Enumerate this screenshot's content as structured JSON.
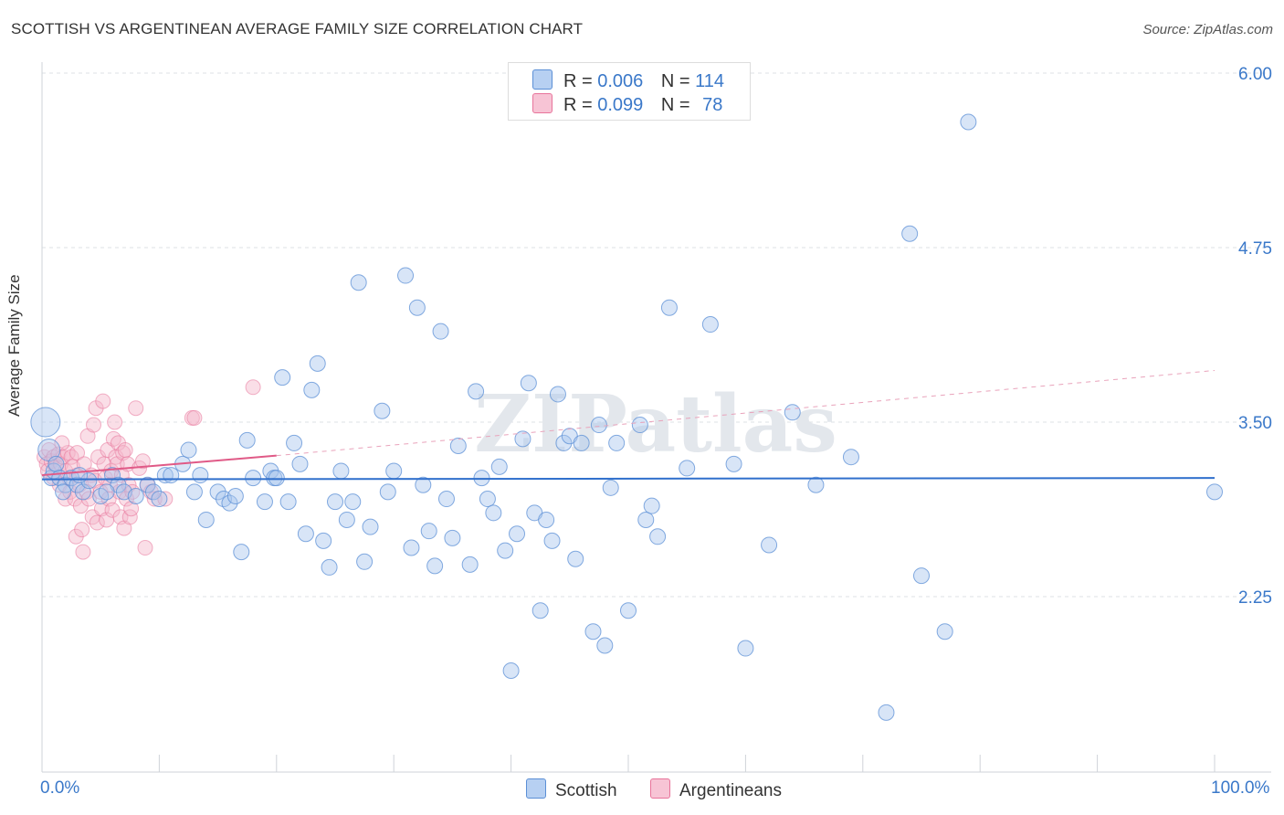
{
  "title": "SCOTTISH VS ARGENTINEAN AVERAGE FAMILY SIZE CORRELATION CHART",
  "source": "Source: ZipAtlas.com",
  "colors": {
    "blue": "#5b8fd6",
    "blue_fill": "#a9c6ee",
    "pink": "#e8749b",
    "pink_fill": "#f4b6ca",
    "tick_text": "#3a78c9"
  },
  "watermark": "ZIPatlas",
  "legend": {
    "rows": [
      {
        "r_label": "R =",
        "r_value": "0.006",
        "n_label": "N =",
        "n_value": "114"
      },
      {
        "r_label": "R =",
        "r_value": "0.099",
        "n_label": "N =",
        "n_value": "78"
      }
    ]
  },
  "chart_data": {
    "type": "scatter",
    "title": "SCOTTISH VS ARGENTINEAN AVERAGE FAMILY SIZE CORRELATION CHART",
    "xlabel": "",
    "ylabel": "Average Family Size",
    "xlim": [
      0,
      100
    ],
    "ylim": [
      1.2,
      6.1
    ],
    "x_tick_labels": [
      "0.0%",
      "100.0%"
    ],
    "y_ticks": [
      2.25,
      3.5,
      4.75,
      6.0
    ],
    "y_tick_labels": [
      "2.25",
      "3.50",
      "4.75",
      "6.00"
    ],
    "grid": true,
    "legend_position": "top-center",
    "series": [
      {
        "name": "Scottish",
        "R": 0.006,
        "N": 114,
        "trend": {
          "x0": 0,
          "y0": 3.09,
          "x1": 100,
          "y1": 3.1
        },
        "points": [
          [
            0.3,
            3.5
          ],
          [
            0.6,
            3.3
          ],
          [
            0.8,
            3.1
          ],
          [
            1,
            3.15
          ],
          [
            1.2,
            3.2
          ],
          [
            1.5,
            3.1
          ],
          [
            2,
            3.05
          ],
          [
            2.5,
            3.1
          ],
          [
            3,
            3.05
          ],
          [
            3.5,
            3.0
          ],
          [
            4,
            3.08
          ],
          [
            5,
            2.97
          ],
          [
            6,
            3.12
          ],
          [
            6.5,
            3.05
          ],
          [
            7,
            3.0
          ],
          [
            8,
            2.97
          ],
          [
            9,
            3.05
          ],
          [
            9.5,
            3.0
          ],
          [
            10,
            2.95
          ],
          [
            10.5,
            3.12
          ],
          [
            11,
            3.12
          ],
          [
            12,
            3.2
          ],
          [
            12.5,
            3.3
          ],
          [
            13,
            3.0
          ],
          [
            13.5,
            3.12
          ],
          [
            14,
            2.8
          ],
          [
            15,
            3.0
          ],
          [
            15.5,
            2.95
          ],
          [
            16,
            2.92
          ],
          [
            16.5,
            2.97
          ],
          [
            17,
            2.57
          ],
          [
            17.5,
            3.37
          ],
          [
            18,
            3.1
          ],
          [
            19,
            2.93
          ],
          [
            19.5,
            3.15
          ],
          [
            19.8,
            3.1
          ],
          [
            20,
            3.1
          ],
          [
            20.5,
            3.82
          ],
          [
            21,
            2.93
          ],
          [
            21.5,
            3.35
          ],
          [
            22,
            3.2
          ],
          [
            22.5,
            2.7
          ],
          [
            23,
            3.73
          ],
          [
            23.5,
            3.92
          ],
          [
            24,
            2.65
          ],
          [
            24.5,
            2.46
          ],
          [
            25,
            2.93
          ],
          [
            25.5,
            3.15
          ],
          [
            26,
            2.8
          ],
          [
            26.5,
            2.93
          ],
          [
            27,
            4.5
          ],
          [
            27.5,
            2.5
          ],
          [
            28,
            2.75
          ],
          [
            29,
            3.58
          ],
          [
            29.5,
            3.0
          ],
          [
            30,
            3.15
          ],
          [
            31,
            4.55
          ],
          [
            31.5,
            2.6
          ],
          [
            32,
            4.32
          ],
          [
            32.5,
            3.05
          ],
          [
            33,
            2.72
          ],
          [
            33.5,
            2.47
          ],
          [
            34,
            4.15
          ],
          [
            34.5,
            2.95
          ],
          [
            35,
            2.67
          ],
          [
            35.5,
            3.33
          ],
          [
            36.5,
            2.48
          ],
          [
            37,
            3.72
          ],
          [
            37.5,
            3.1
          ],
          [
            38,
            2.95
          ],
          [
            38.5,
            2.85
          ],
          [
            39,
            3.18
          ],
          [
            39.5,
            2.58
          ],
          [
            40,
            1.72
          ],
          [
            40.5,
            2.7
          ],
          [
            41,
            3.38
          ],
          [
            41.5,
            3.78
          ],
          [
            42,
            2.85
          ],
          [
            42.5,
            2.15
          ],
          [
            43,
            2.8
          ],
          [
            43.5,
            2.65
          ],
          [
            44,
            3.7
          ],
          [
            44.5,
            3.35
          ],
          [
            45,
            3.4
          ],
          [
            45.5,
            2.52
          ],
          [
            46,
            3.35
          ],
          [
            47,
            2.0
          ],
          [
            47.5,
            3.48
          ],
          [
            48,
            1.9
          ],
          [
            48.5,
            3.03
          ],
          [
            49,
            3.35
          ],
          [
            50,
            2.15
          ],
          [
            51,
            3.48
          ],
          [
            51.5,
            2.8
          ],
          [
            52,
            2.9
          ],
          [
            52.5,
            2.68
          ],
          [
            53.5,
            4.32
          ],
          [
            55,
            3.17
          ],
          [
            57,
            4.2
          ],
          [
            59,
            3.2
          ],
          [
            60,
            1.88
          ],
          [
            62,
            2.62
          ],
          [
            64,
            3.57
          ],
          [
            66,
            3.05
          ],
          [
            69,
            3.25
          ],
          [
            72,
            1.42
          ],
          [
            74,
            4.85
          ],
          [
            75,
            2.4
          ],
          [
            77,
            2.0
          ],
          [
            79,
            5.65
          ],
          [
            100,
            3.0
          ],
          [
            1.8,
            3.0
          ],
          [
            3.2,
            3.12
          ],
          [
            5.5,
            3.0
          ]
        ]
      },
      {
        "name": "Argentineans",
        "R": 0.099,
        "N": 78,
        "trend": {
          "x0": 0,
          "y0": 3.12,
          "x1": 20,
          "y1": 3.26
        },
        "trend_dashed": {
          "x0": 20,
          "y0": 3.26,
          "x1": 100,
          "y1": 3.87
        },
        "points": [
          [
            0.2,
            3.25
          ],
          [
            0.4,
            3.2
          ],
          [
            0.5,
            3.15
          ],
          [
            0.6,
            3.3
          ],
          [
            0.8,
            3.22
          ],
          [
            1,
            3.25
          ],
          [
            1,
            3.1
          ],
          [
            1.2,
            3.18
          ],
          [
            1.4,
            3.27
          ],
          [
            1.5,
            3.05
          ],
          [
            1.6,
            3.2
          ],
          [
            1.8,
            3.25
          ],
          [
            2,
            3.15
          ],
          [
            2,
            2.95
          ],
          [
            2.2,
            3.28
          ],
          [
            2.3,
            3.1
          ],
          [
            2.4,
            3.0
          ],
          [
            2.5,
            3.25
          ],
          [
            2.6,
            3.18
          ],
          [
            2.8,
            2.95
          ],
          [
            2.9,
            2.68
          ],
          [
            3,
            3.12
          ],
          [
            3,
            3.28
          ],
          [
            3.2,
            3.05
          ],
          [
            3.3,
            2.9
          ],
          [
            3.4,
            2.73
          ],
          [
            3.5,
            2.57
          ],
          [
            3.6,
            3.2
          ],
          [
            3.8,
            3.0
          ],
          [
            3.9,
            3.4
          ],
          [
            4,
            2.95
          ],
          [
            4.2,
            3.12
          ],
          [
            4.3,
            2.82
          ],
          [
            4.4,
            3.48
          ],
          [
            4.5,
            3.08
          ],
          [
            4.6,
            3.6
          ],
          [
            4.7,
            2.78
          ],
          [
            4.8,
            3.25
          ],
          [
            5,
            3.0
          ],
          [
            5.1,
            2.88
          ],
          [
            5.2,
            3.65
          ],
          [
            5.3,
            3.2
          ],
          [
            5.4,
            3.1
          ],
          [
            5.5,
            2.8
          ],
          [
            5.6,
            3.3
          ],
          [
            5.7,
            2.95
          ],
          [
            5.8,
            3.05
          ],
          [
            5.9,
            3.15
          ],
          [
            6,
            2.87
          ],
          [
            6.1,
            3.38
          ],
          [
            6.2,
            3.5
          ],
          [
            6.3,
            3.25
          ],
          [
            6.4,
            3.2
          ],
          [
            6.5,
            3.35
          ],
          [
            6.6,
            3.0
          ],
          [
            6.7,
            2.82
          ],
          [
            6.8,
            3.12
          ],
          [
            6.9,
            3.28
          ],
          [
            7,
            2.74
          ],
          [
            7.1,
            3.3
          ],
          [
            7.2,
            2.95
          ],
          [
            7.3,
            3.2
          ],
          [
            7.4,
            3.05
          ],
          [
            7.5,
            2.82
          ],
          [
            7.6,
            2.88
          ],
          [
            7.7,
            3.0
          ],
          [
            8,
            3.6
          ],
          [
            8.3,
            3.17
          ],
          [
            8.6,
            3.22
          ],
          [
            8.8,
            2.6
          ],
          [
            9,
            3.05
          ],
          [
            9.3,
            3.0
          ],
          [
            9.6,
            2.95
          ],
          [
            10.5,
            2.95
          ],
          [
            12.8,
            3.53
          ],
          [
            13,
            3.53
          ],
          [
            18,
            3.75
          ],
          [
            1.7,
            3.35
          ]
        ]
      }
    ]
  }
}
